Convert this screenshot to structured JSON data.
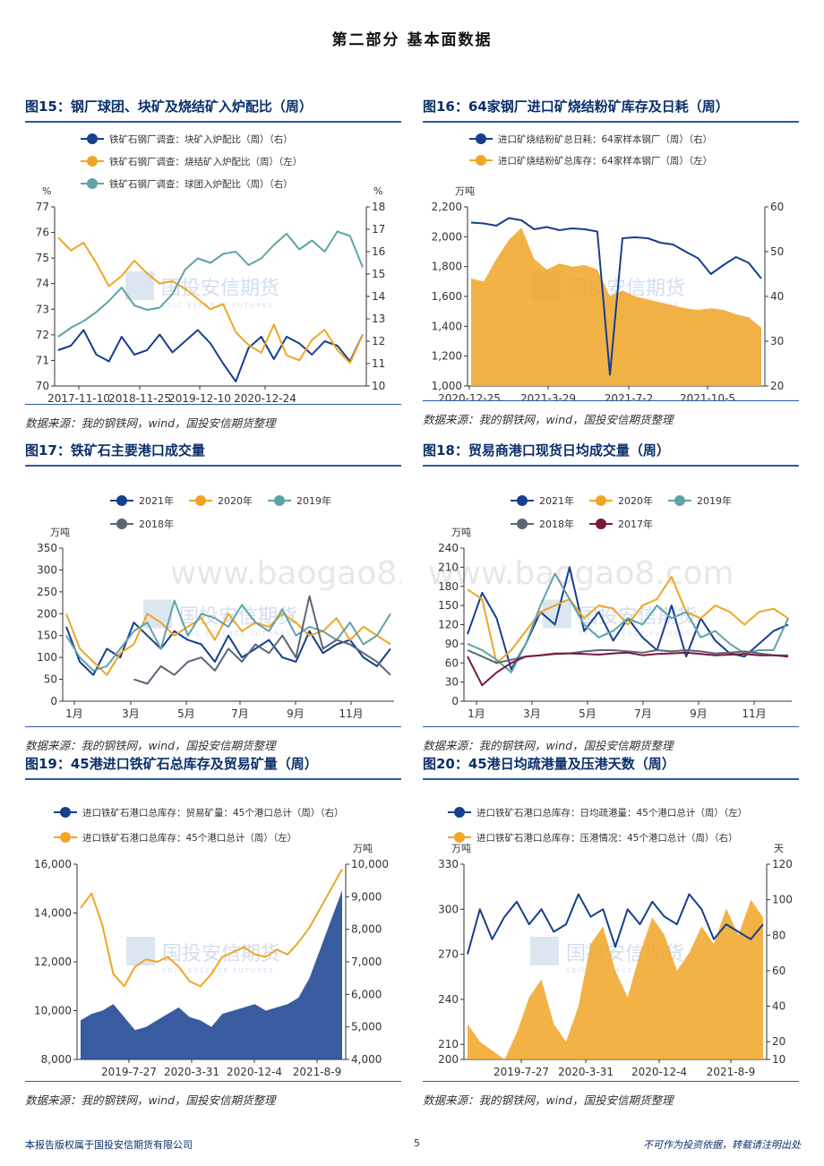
{
  "page_title": "第二部分      基本面数据",
  "footer": {
    "left": "本报告版权属于国投安信期货有限公司",
    "page": "5",
    "right": "不可作为投资依据，转载请注明出处"
  },
  "watermark": {
    "cn": "国投安信期货",
    "en": "SDIC ESSENCE FUTURES",
    "url": "www.baogao8.com"
  },
  "colors": {
    "navy": "#163f8f",
    "orange": "#f0a526",
    "teal": "#5fa3a8",
    "gray": "#5b6675",
    "maroon": "#7a1840",
    "title": "#0b2f6b"
  },
  "charts": [
    {
      "title": "图15：钢厂球团、块矿及烧结矿入炉配比（周）",
      "source": "数据来源：我的钢铁网，wind，国投安信期货整理",
      "unit_left": "%",
      "unit_right": "%",
      "legend": [
        "铁矿石钢厂调查：块矿入炉配比（周）（右）",
        "铁矿石钢厂调查：烧结矿入炉配比（周）（左）",
        "铁矿石钢厂调查：球团入炉配比（周）（右）"
      ],
      "chart_data": {
        "type": "line",
        "x_labels": [
          "2017-11-10",
          "2018-11-25",
          "2019-12-10",
          "2020-12-24"
        ],
        "ylim": [
          70,
          77
        ],
        "y2lim": [
          10,
          18
        ],
        "yticks": [
          "70",
          "71",
          "72",
          "73",
          "74",
          "75",
          "76",
          "77"
        ],
        "y2ticks": [
          "10",
          "11",
          "12",
          "13",
          "14",
          "15",
          "16",
          "17",
          "18"
        ],
        "series": [
          {
            "name": "块矿入炉配比",
            "axis": "right",
            "values": [
              11.6,
              11.8,
              12.5,
              11.4,
              11.1,
              12.2,
              11.4,
              11.6,
              12.3,
              11.5,
              12.0,
              12.5,
              11.9,
              11.0,
              10.2,
              11.7,
              12.2,
              11.2,
              12.2,
              11.9,
              11.4,
              12.0,
              11.8,
              11.1,
              12.3
            ]
          },
          {
            "name": "烧结矿入炉配比",
            "axis": "left",
            "values": [
              75.8,
              75.3,
              75.6,
              74.8,
              73.9,
              74.3,
              74.9,
              74.4,
              74.0,
              74.1,
              73.8,
              73.4,
              73.0,
              73.2,
              72.1,
              71.6,
              71.3,
              72.4,
              71.2,
              71.0,
              71.8,
              72.2,
              71.4,
              70.9,
              72.0
            ]
          },
          {
            "name": "球团入炉配比",
            "axis": "right",
            "values": [
              12.2,
              12.6,
              12.9,
              13.3,
              13.8,
              14.4,
              13.6,
              13.4,
              13.5,
              14.1,
              15.2,
              15.7,
              15.5,
              15.9,
              16.0,
              15.4,
              15.7,
              16.3,
              16.8,
              16.1,
              16.5,
              16.0,
              16.9,
              16.7,
              15.3
            ]
          }
        ]
      }
    },
    {
      "title": "图16：64家钢厂进口矿烧结粉矿库存及日耗（周）",
      "source": "数据来源：我的钢铁网，wind，国投安信期货整理",
      "unit_left": "万吨",
      "legend": [
        "进口矿烧结粉矿总日耗：64家样本钢厂（周）（右）",
        "进口矿烧结粉矿总库存：64家样本钢厂（周）（左）"
      ],
      "chart_data": {
        "type": "area+line",
        "x_labels": [
          "2020-12-25",
          "2021-3-29",
          "2021-7-2",
          "2021-10-5"
        ],
        "ylim": [
          1000,
          2200
        ],
        "y2lim": [
          20,
          60
        ],
        "yticks": [
          "1,000",
          "1,200",
          "1,400",
          "1,600",
          "1,800",
          "2,000",
          "2,200"
        ],
        "y2ticks": [
          "20",
          "30",
          "40",
          "50",
          "60"
        ],
        "series": [
          {
            "name": "总日耗",
            "axis": "right",
            "values": [
              56.5,
              56.3,
              55.8,
              57.5,
              57.0,
              55.0,
              55.5,
              54.8,
              55.2,
              55.0,
              54.5,
              22.5,
              53.0,
              53.2,
              53.0,
              52.0,
              51.6,
              50.0,
              48.5,
              45.0,
              47.0,
              48.8,
              47.5,
              44.0
            ]
          },
          {
            "name": "总库存",
            "axis": "left",
            "values": [
              1720,
              1700,
              1850,
              1980,
              2060,
              1850,
              1780,
              1820,
              1800,
              1810,
              1780,
              1600,
              1640,
              1600,
              1580,
              1560,
              1540,
              1520,
              1510,
              1520,
              1510,
              1480,
              1460,
              1390
            ]
          }
        ]
      }
    },
    {
      "title": "图17：铁矿石主要港口成交量",
      "source": "数据来源：我的钢铁网，wind，国投安信期货整理",
      "unit_left": "万吨",
      "legend": [
        "2021年",
        "2020年",
        "2019年",
        "2018年"
      ],
      "chart_data": {
        "type": "line",
        "x_labels": [
          "1月",
          "3月",
          "5月",
          "7月",
          "9月",
          "11月"
        ],
        "ylim": [
          0,
          350
        ],
        "yticks": [
          "0",
          "50",
          "100",
          "150",
          "200",
          "250",
          "300",
          "350"
        ],
        "series": [
          {
            "name": "2021年",
            "values": [
              170,
              90,
              60,
              120,
              100,
              180,
              150,
              120,
              160,
              140,
              130,
              90,
              150,
              100,
              120,
              140,
              100,
              90,
              160,
              110,
              130,
              140,
              100,
              80,
              120
            ]
          },
          {
            "name": "2020年",
            "values": [
              200,
              120,
              90,
              60,
              110,
              130,
              200,
              180,
              150,
              170,
              190,
              140,
              200,
              160,
              180,
              170,
              200,
              180,
              150,
              160,
              190,
              140,
              170,
              150,
              130
            ]
          },
          {
            "name": "2019年",
            "values": [
              150,
              100,
              70,
              80,
              120,
              160,
              180,
              120,
              230,
              150,
              200,
              190,
              170,
              220,
              180,
              160,
              210,
              150,
              170,
              160,
              140,
              180,
              130,
              150,
              200
            ]
          },
          {
            "name": "2018年",
            "values": [
              null,
              null,
              null,
              null,
              null,
              50,
              40,
              80,
              60,
              90,
              100,
              70,
              120,
              90,
              130,
              110,
              150,
              100,
              240,
              120,
              140,
              130,
              110,
              90,
              60
            ]
          }
        ]
      }
    },
    {
      "title": "图18：贸易商港口现货日均成交量（周）",
      "source": "数据来源：我的钢铁网，wind，国投安信期货整理",
      "unit_left": "万吨",
      "legend": [
        "2021年",
        "2020年",
        "2019年",
        "2018年",
        "2017年"
      ],
      "chart_data": {
        "type": "line",
        "x_labels": [
          "1月",
          "3月",
          "5月",
          "7月",
          "9月",
          "11月"
        ],
        "ylim": [
          0,
          240
        ],
        "yticks": [
          "0",
          "30",
          "60",
          "90",
          "120",
          "150",
          "180",
          "210",
          "240"
        ],
        "series": [
          {
            "name": "2021年",
            "values": [
              105,
              170,
              130,
              50,
              90,
              140,
              120,
              210,
              110,
              140,
              95,
              130,
              100,
              80,
              150,
              70,
              130,
              95,
              75,
              70,
              90,
              110,
              120
            ]
          },
          {
            "name": "2020年",
            "values": [
              175,
              160,
              60,
              80,
              110,
              140,
              150,
              160,
              130,
              150,
              145,
              120,
              150,
              160,
              195,
              140,
              130,
              150,
              140,
              120,
              140,
              145,
              130
            ]
          },
          {
            "name": "2019年",
            "values": [
              90,
              80,
              65,
              45,
              90,
              150,
              200,
              160,
              120,
              100,
              110,
              130,
              120,
              150,
              130,
              140,
              100,
              110,
              90,
              75,
              80,
              80,
              130
            ]
          },
          {
            "name": "2018年",
            "values": [
              80,
              70,
              60,
              65,
              70,
              72,
              75,
              75,
              78,
              80,
              80,
              78,
              76,
              80,
              78,
              80,
              78,
              75,
              76,
              78,
              75,
              72,
              72
            ]
          },
          {
            "name": "2017年",
            "values": [
              70,
              25,
              45,
              60,
              70,
              72,
              74,
              75,
              74,
              73,
              75,
              76,
              72,
              74,
              75,
              76,
              74,
              72,
              73,
              74,
              72,
              72,
              70
            ]
          }
        ]
      }
    },
    {
      "title": "图19：45港进口铁矿石总库存及贸易矿量（周）",
      "source": "数据来源：我的钢铁网，wind，国投安信期货整理",
      "unit_right": "万吨",
      "legend": [
        "进口铁矿石港口总库存：贸易矿量：45个港口总计（周）（右）",
        "进口铁矿石港口总库存：45个港口总计（周）（左）"
      ],
      "chart_data": {
        "type": "area+line",
        "x_labels": [
          "2019-7-27",
          "2020-3-31",
          "2020-12-4",
          "2021-8-9"
        ],
        "ylim": [
          8000,
          16000
        ],
        "y2lim": [
          4000,
          10000
        ],
        "yticks": [
          "8,000",
          "10,000",
          "12,000",
          "14,000",
          "16,000"
        ],
        "y2ticks": [
          "4,000",
          "5,000",
          "6,000",
          "7,000",
          "8,000",
          "9,000",
          "10,000"
        ],
        "series": [
          {
            "name": "贸易矿量",
            "axis": "right",
            "values": [
              5200,
              5400,
              5500,
              5700,
              5300,
              4900,
              5000,
              5200,
              5400,
              5600,
              5300,
              5200,
              5000,
              5400,
              5500,
              5600,
              5700,
              5500,
              5600,
              5700,
              5900,
              6500,
              7400,
              8300,
              9200
            ]
          },
          {
            "name": "总库存",
            "axis": "left",
            "values": [
              14200,
              14800,
              13500,
              11500,
              11000,
              11800,
              12100,
              12000,
              12200,
              11800,
              11200,
              11000,
              11500,
              12200,
              12400,
              12600,
              12300,
              12200,
              12500,
              12300,
              12800,
              13400,
              14200,
              15000,
              15800
            ]
          }
        ]
      }
    },
    {
      "title": "图20：45港日均疏港量及压港天数（周）",
      "source": "数据来源：我的钢铁网，wind，国投安信期货整理",
      "unit_left": "万吨",
      "unit_right": "天",
      "legend": [
        "进口铁矿石港口总库存：日均疏港量：45个港口总计（周）（左）",
        "进口铁矿石港口总库存：压港情况：45个港口总计（周）（右）"
      ],
      "chart_data": {
        "type": "area+line",
        "x_labels": [
          "2019-7-27",
          "2020-3-31",
          "2020-12-4",
          "2021-8-9"
        ],
        "ylim": [
          200,
          330
        ],
        "y2lim": [
          10,
          120
        ],
        "yticks": [
          "200",
          "210",
          "240",
          "270",
          "300",
          "330"
        ],
        "y2ticks": [
          "10",
          "20",
          "40",
          "60",
          "80",
          "100",
          "120"
        ],
        "series": [
          {
            "name": "日均疏港量",
            "axis": "left",
            "values": [
              270,
              300,
              280,
              295,
              305,
              290,
              300,
              285,
              290,
              310,
              295,
              300,
              275,
              300,
              290,
              305,
              295,
              290,
              310,
              300,
              280,
              290,
              285,
              280,
              290
            ]
          },
          {
            "name": "压港天数",
            "axis": "right",
            "values": [
              30,
              20,
              15,
              10,
              25,
              45,
              55,
              30,
              20,
              40,
              75,
              85,
              60,
              45,
              70,
              90,
              80,
              60,
              70,
              85,
              75,
              95,
              80,
              100,
              90
            ]
          }
        ]
      }
    }
  ]
}
